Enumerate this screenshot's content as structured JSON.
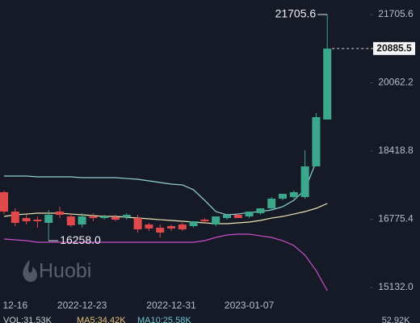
{
  "chart_data": {
    "type": "candlestick",
    "categories": [
      null,
      "12-16",
      null,
      null,
      null,
      null,
      null,
      "2022-12-23",
      null,
      null,
      null,
      null,
      null,
      null,
      null,
      "2022-12-31",
      null,
      null,
      null,
      null,
      null,
      null,
      "2023-01-07",
      null,
      null,
      null,
      null,
      null,
      null,
      null
    ],
    "open": [
      17427,
      16960,
      16804,
      16765,
      16688,
      16960,
      16843,
      16649,
      16843,
      16804,
      16824,
      16824,
      16804,
      16649,
      16571,
      16610,
      16649,
      16610,
      16765,
      16649,
      16804,
      16882,
      16843,
      16921,
      17038,
      17271,
      17310,
      17310,
      18049,
      19177
    ],
    "high": [
      17466,
      17038,
      16882,
      16843,
      16999,
      17077,
      16901,
      16921,
      16921,
      16882,
      16882,
      16921,
      16882,
      16688,
      16649,
      16649,
      16688,
      16727,
      16804,
      16843,
      16882,
      16921,
      16960,
      17038,
      17310,
      17388,
      17466,
      18438,
      19333,
      21705.6
    ],
    "low": [
      16901,
      16610,
      16649,
      16571,
      16258,
      16804,
      16590,
      16571,
      16727,
      16765,
      16727,
      16765,
      16454,
      16493,
      16338,
      16493,
      16493,
      16571,
      16688,
      16610,
      16765,
      16804,
      16804,
      16882,
      16999,
      17232,
      17271,
      17271,
      18049,
      19177
    ],
    "close": [
      16960,
      16688,
      16727,
      16727,
      16882,
      16882,
      16629,
      16843,
      16804,
      16843,
      16765,
      16882,
      16532,
      16552,
      16454,
      16552,
      16532,
      16727,
      16727,
      16843,
      16882,
      16804,
      16960,
      17038,
      17271,
      17388,
      17427,
      18049,
      19235,
      20885.5
    ],
    "up_color": "#3ba88b",
    "down_color": "#e0494c",
    "overlays": [
      {
        "color": "#8fd3d6",
        "values": [
          17816,
          17816,
          17816,
          17796,
          17796,
          17796,
          17796,
          17777,
          17777,
          17777,
          17777,
          17757,
          17738,
          17699,
          17660,
          17621,
          17602,
          17485,
          17232,
          16960,
          16882,
          16901,
          16940,
          16960,
          16999,
          17077,
          17232,
          17485,
          18166,
          null
        ]
      },
      {
        "color": "#efe4b4",
        "values": [
          16843,
          16882,
          16901,
          16921,
          16921,
          16921,
          16901,
          16882,
          16863,
          16843,
          16843,
          16824,
          16804,
          16785,
          16765,
          16746,
          16727,
          16707,
          16688,
          16668,
          16668,
          16688,
          16707,
          16746,
          16804,
          16843,
          16901,
          16960,
          17038,
          17155
        ]
      },
      {
        "color": "#c84fc8",
        "values": [
          16299,
          16279,
          16260,
          16221,
          16221,
          16221,
          16221,
          16221,
          16221,
          16221,
          16221,
          16221,
          16221,
          16221,
          16221,
          16221,
          16221,
          16221,
          16260,
          16338,
          16396,
          16415,
          16415,
          16376,
          16338,
          16260,
          16143,
          15910,
          15540,
          15054
        ]
      }
    ],
    "ylim": [
      14957,
      22056
    ],
    "yticks": [
      21705.6,
      20062.2,
      18418.8,
      16775.4,
      {
        "value": 15132,
        "label": "15132.0"
      }
    ],
    "max_label": "21705.6",
    "min_label": "16258.0",
    "last_label": "20885.5",
    "watermark": "Huobi",
    "volume_header": [
      "VOL:31.53K",
      "MA5:34.42K",
      "MA10:25.58K"
    ],
    "volume_axis_label": "52.92K"
  }
}
